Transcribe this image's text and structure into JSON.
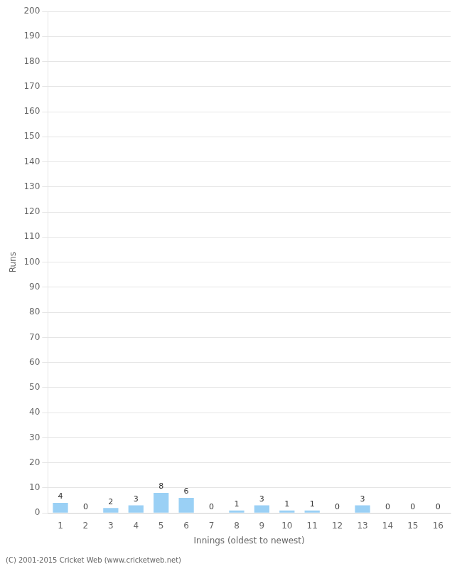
{
  "chart_data": {
    "type": "bar",
    "xlabel": "Innings (oldest to newest)",
    "ylabel": "Runs",
    "categories": [
      "1",
      "2",
      "3",
      "4",
      "5",
      "6",
      "7",
      "8",
      "9",
      "10",
      "11",
      "12",
      "13",
      "14",
      "15",
      "16"
    ],
    "values": [
      4,
      0,
      2,
      3,
      8,
      6,
      0,
      1,
      3,
      1,
      1,
      0,
      3,
      0,
      0,
      0
    ],
    "ylim": [
      0,
      200
    ],
    "yticks": [
      0,
      10,
      20,
      30,
      40,
      50,
      60,
      70,
      80,
      90,
      100,
      110,
      120,
      130,
      140,
      150,
      160,
      170,
      180,
      190,
      200
    ],
    "grid": true,
    "data_labels": true,
    "annotations": [
      "(C) 2001-2015 Cricket Web (www.cricketweb.net)"
    ]
  }
}
